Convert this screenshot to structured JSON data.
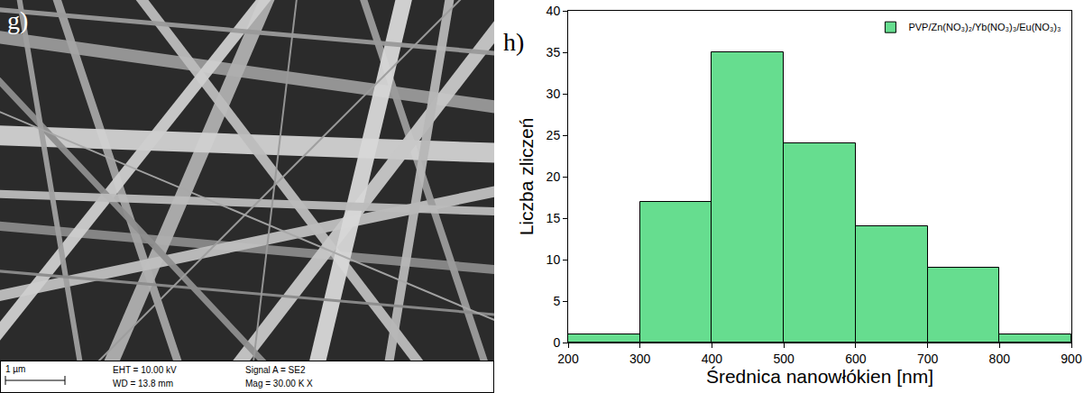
{
  "sem_image": {
    "label": "g)",
    "scale_bar": "1 µm",
    "info": [
      "EHT = 10.00 kV",
      "WD = 13.8 mm",
      "Signal A = SE2",
      "Mag = 30.00 K X"
    ]
  },
  "chart_data": {
    "type": "histogram",
    "annotations": [
      "h)"
    ],
    "x_label": "Średnica nanowłókien [nm]",
    "y_label": "Liczba zliczeń",
    "bins": [
      200,
      300,
      400,
      500,
      600,
      700,
      800,
      900
    ],
    "series": [
      {
        "name": "PVP/Zn(NO₃)₂/Yb(NO₃)₃/Eu(NO₃)₃",
        "color": "#66dd8f",
        "values": [
          1,
          17,
          35,
          24,
          14,
          9,
          1
        ]
      }
    ],
    "xlim": [
      200,
      900
    ],
    "xticks": [
      200,
      300,
      400,
      500,
      600,
      700,
      800,
      900
    ],
    "ylim": [
      0,
      40
    ],
    "yticks": [
      0,
      5,
      10,
      15,
      20,
      25,
      30,
      35,
      40
    ],
    "grid": false,
    "legend": "upper right"
  }
}
